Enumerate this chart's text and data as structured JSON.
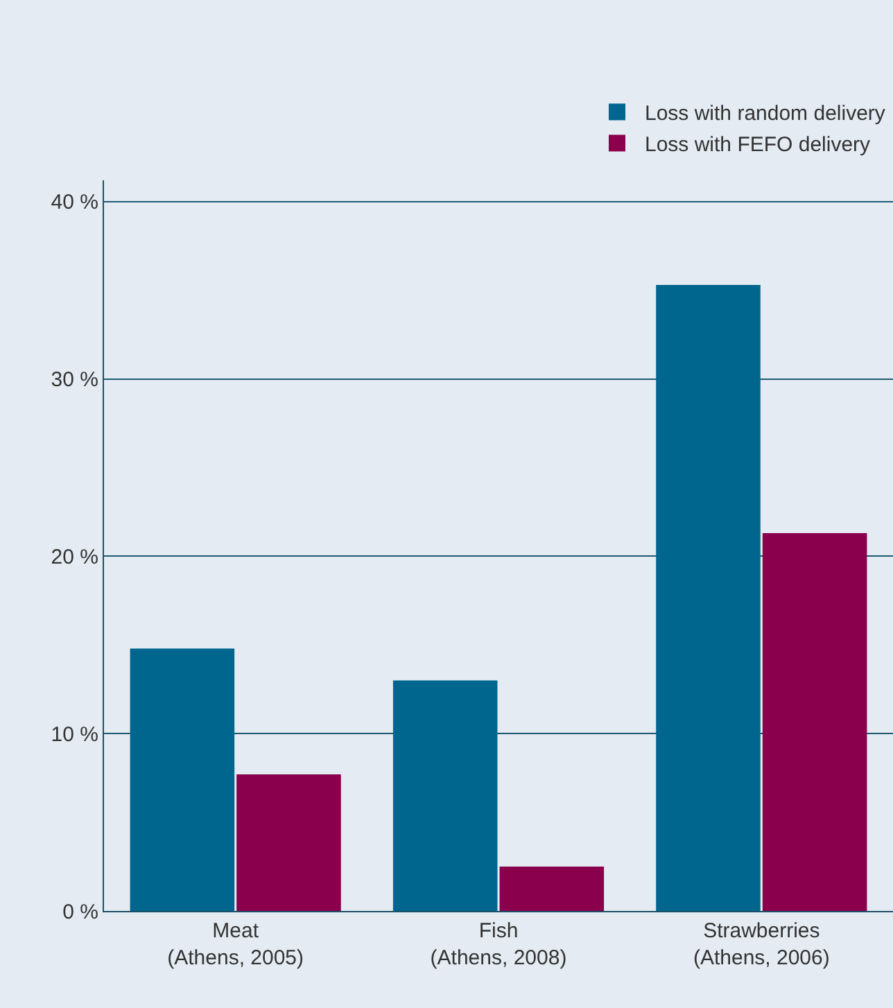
{
  "chart_data": {
    "type": "bar",
    "categories": [
      "Meat\n(Athens, 2005)",
      "Fish\n(Athens, 2008)",
      "Strawberries\n(Athens, 2006)"
    ],
    "series": [
      {
        "name": "Loss with random delivery",
        "color": "#00668e",
        "values": [
          14.8,
          13.0,
          35.3
        ]
      },
      {
        "name": "Loss with FEFO delivery",
        "color": "#8b004c",
        "values": [
          7.7,
          2.5,
          21.3
        ]
      }
    ],
    "ylim": [
      0,
      41.2
    ],
    "yticks": [
      {
        "value": 0,
        "label": "0 %"
      },
      {
        "value": 10,
        "label": "10 %"
      },
      {
        "value": 20,
        "label": "20 %"
      },
      {
        "value": 30,
        "label": "30 %"
      },
      {
        "value": 40,
        "label": "40 %"
      }
    ],
    "grid": "y",
    "legend": "top right"
  }
}
